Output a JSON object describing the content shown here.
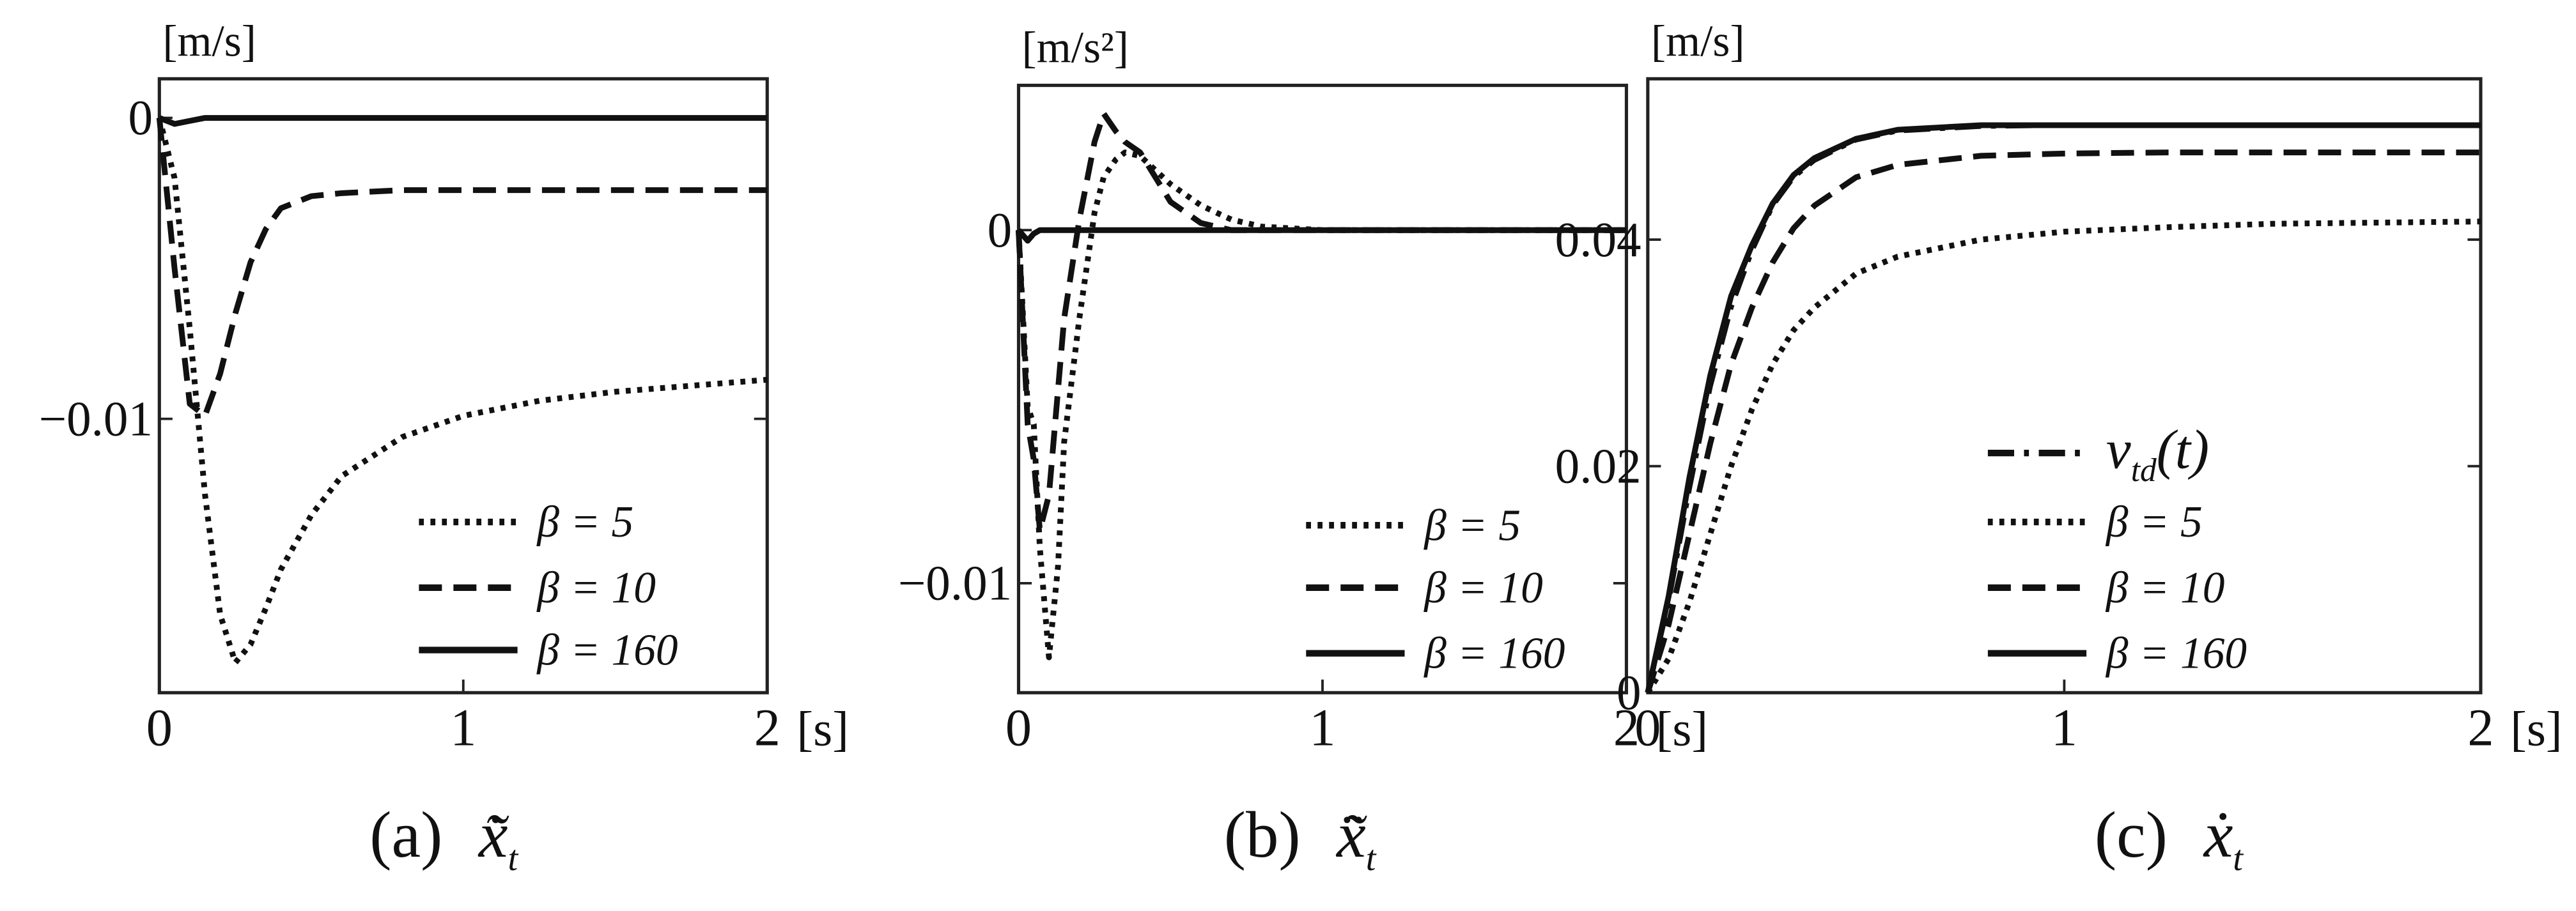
{
  "chart_data": [
    {
      "type": "line",
      "y_unit": "[m/s]",
      "x_unit": "[s]",
      "caption_label": "(a)",
      "caption_symbol": "x̃̇",
      "caption_subscript": "t",
      "x": [
        0,
        0.05,
        0.1,
        0.15,
        0.2,
        0.25,
        0.3,
        0.35,
        0.4,
        0.5,
        0.6,
        0.8,
        1,
        1.25,
        1.5,
        1.75,
        2
      ],
      "xlim": [
        0,
        2
      ],
      "xticks": [
        0,
        1,
        2
      ],
      "ylim": [
        -0.0191,
        0.0013
      ],
      "yticks": [
        {
          "value": -0.01,
          "label": "−0.01"
        },
        0
      ],
      "legend": "lower right",
      "color": "#111111",
      "series": [
        {
          "name": "β = 5",
          "dash": "dotted",
          "values": [
            0,
            -0.002,
            -0.007,
            -0.0125,
            -0.0165,
            -0.0181,
            -0.0175,
            -0.0163,
            -0.015,
            -0.0132,
            -0.0119,
            -0.0106,
            -0.0099,
            -0.0094,
            -0.0091,
            -0.0089,
            -0.0087
          ]
        },
        {
          "name": "β = 10",
          "dash": "dashed",
          "values": [
            0,
            -0.005,
            -0.0095,
            -0.0099,
            -0.0085,
            -0.0065,
            -0.0048,
            -0.0037,
            -0.003,
            -0.0026,
            -0.0025,
            -0.0024,
            -0.0024,
            -0.0024,
            -0.0024,
            -0.0024,
            -0.0024
          ]
        },
        {
          "name": "β = 160",
          "dash": "solid",
          "values": [
            0,
            -0.0002,
            -0.0001,
            0,
            0,
            0,
            0,
            0,
            0,
            0,
            0,
            0,
            0,
            0,
            0,
            0,
            0
          ]
        }
      ]
    },
    {
      "type": "line",
      "y_unit": "[m/s²]",
      "x_unit": "[s]",
      "caption_label": "(b)",
      "caption_symbol": "x̃̈",
      "caption_subscript": "t",
      "x": [
        0,
        0.03,
        0.05,
        0.07,
        0.1,
        0.13,
        0.15,
        0.2,
        0.25,
        0.28,
        0.32,
        0.35,
        0.4,
        0.45,
        0.5,
        0.6,
        0.7,
        0.8,
        1,
        1.5,
        2
      ],
      "xlim": [
        0,
        2
      ],
      "xticks": [
        0,
        1,
        2
      ],
      "ylim": [
        -0.0131,
        0.0041
      ],
      "yticks": [
        {
          "value": -0.01,
          "label": "−0.01"
        },
        0
      ],
      "legend": "lower right",
      "color": "#111111",
      "series": [
        {
          "name": "β = 5",
          "dash": "dotted",
          "values": [
            0,
            -0.005,
            -0.0055,
            -0.009,
            -0.0121,
            -0.0095,
            -0.006,
            -0.0025,
            0.0005,
            0.0015,
            0.002,
            0.0022,
            0.0021,
            0.0017,
            0.0013,
            0.0007,
            0.0003,
            0.0001,
            0,
            0,
            0
          ]
        },
        {
          "name": "β = 10",
          "dash": "dashed",
          "values": [
            0,
            -0.0055,
            -0.0065,
            -0.0085,
            -0.0075,
            -0.0045,
            -0.0025,
            0.0003,
            0.0025,
            0.0033,
            0.0028,
            0.0025,
            0.0022,
            0.0015,
            0.0008,
            0.0002,
            0,
            0,
            0,
            0,
            0
          ]
        },
        {
          "name": "β = 160",
          "dash": "solid",
          "values": [
            0,
            -0.0003,
            -0.0001,
            0,
            0,
            0,
            0,
            0,
            0,
            0,
            0,
            0,
            0,
            0,
            0,
            0,
            0,
            0,
            0,
            0,
            0
          ]
        }
      ]
    },
    {
      "type": "line",
      "y_unit": "[m/s]",
      "x_unit": "[s]",
      "caption_label": "(c)",
      "caption_symbol": "ẋ",
      "caption_subscript": "t",
      "x": [
        0,
        0.05,
        0.1,
        0.15,
        0.2,
        0.25,
        0.3,
        0.35,
        0.4,
        0.5,
        0.6,
        0.8,
        1,
        1.25,
        1.5,
        1.75,
        2
      ],
      "xlim": [
        0,
        2
      ],
      "xticks": [
        0,
        1,
        2
      ],
      "ylim": [
        0,
        0.0542
      ],
      "yticks": [
        0,
        0.02,
        0.04
      ],
      "legend": "lower right",
      "color": "#111111",
      "series": [
        {
          "name": "v",
          "name_subscript": "td",
          "name_suffix": "(t)",
          "dash": "dashdot",
          "values": [
            0,
            0.008,
            0.018,
            0.027,
            0.034,
            0.039,
            0.043,
            0.0455,
            0.047,
            0.0488,
            0.0496,
            0.05,
            0.0501,
            0.0501,
            0.0501,
            0.0501,
            0.0501
          ]
        },
        {
          "name": "β = 5",
          "dash": "dotted",
          "values": [
            0,
            0.003,
            0.008,
            0.014,
            0.02,
            0.025,
            0.029,
            0.032,
            0.034,
            0.037,
            0.0385,
            0.04,
            0.0407,
            0.0411,
            0.0414,
            0.0415,
            0.0416
          ]
        },
        {
          "name": "β = 10",
          "dash": "dashed",
          "values": [
            0,
            0.006,
            0.014,
            0.022,
            0.029,
            0.034,
            0.038,
            0.041,
            0.043,
            0.0455,
            0.0466,
            0.0474,
            0.0476,
            0.0477,
            0.0477,
            0.0477,
            0.0477
          ]
        },
        {
          "name": "β = 160",
          "dash": "solid",
          "values": [
            0,
            0.0085,
            0.019,
            0.028,
            0.035,
            0.0395,
            0.0432,
            0.0457,
            0.0472,
            0.0489,
            0.0497,
            0.0501,
            0.0501,
            0.0501,
            0.0501,
            0.0501,
            0.0501
          ]
        }
      ]
    }
  ]
}
